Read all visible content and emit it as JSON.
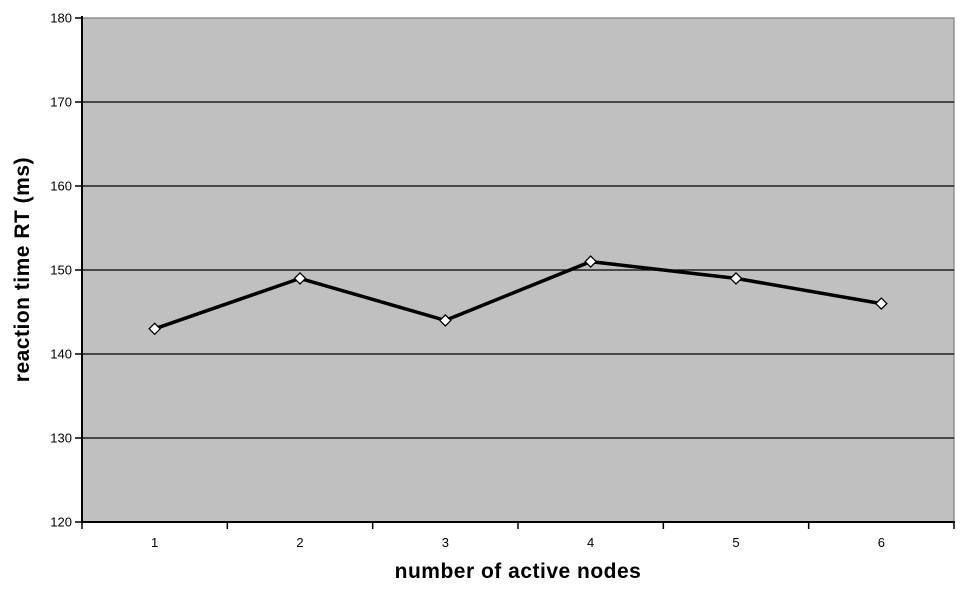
{
  "chart_data": {
    "type": "line",
    "categories": [
      "1",
      "2",
      "3",
      "4",
      "5",
      "6"
    ],
    "values": [
      143,
      149,
      144,
      151,
      149,
      146
    ],
    "title": "",
    "xlabel": "number of active nodes",
    "ylabel": "reaction time RT (ms)",
    "ylim": [
      120,
      180
    ],
    "ytick_step": 10,
    "grid": true,
    "legend": false,
    "marker": "diamond",
    "colors": {
      "page_bg": "#ffffff",
      "plot_bg": "#c0c0c0",
      "plot_border": "#848284",
      "gridline": "#000000",
      "axis": "#000000",
      "line": "#000000",
      "marker_fill": "#ffffff",
      "marker_stroke": "#000000",
      "text": "#000000"
    }
  }
}
